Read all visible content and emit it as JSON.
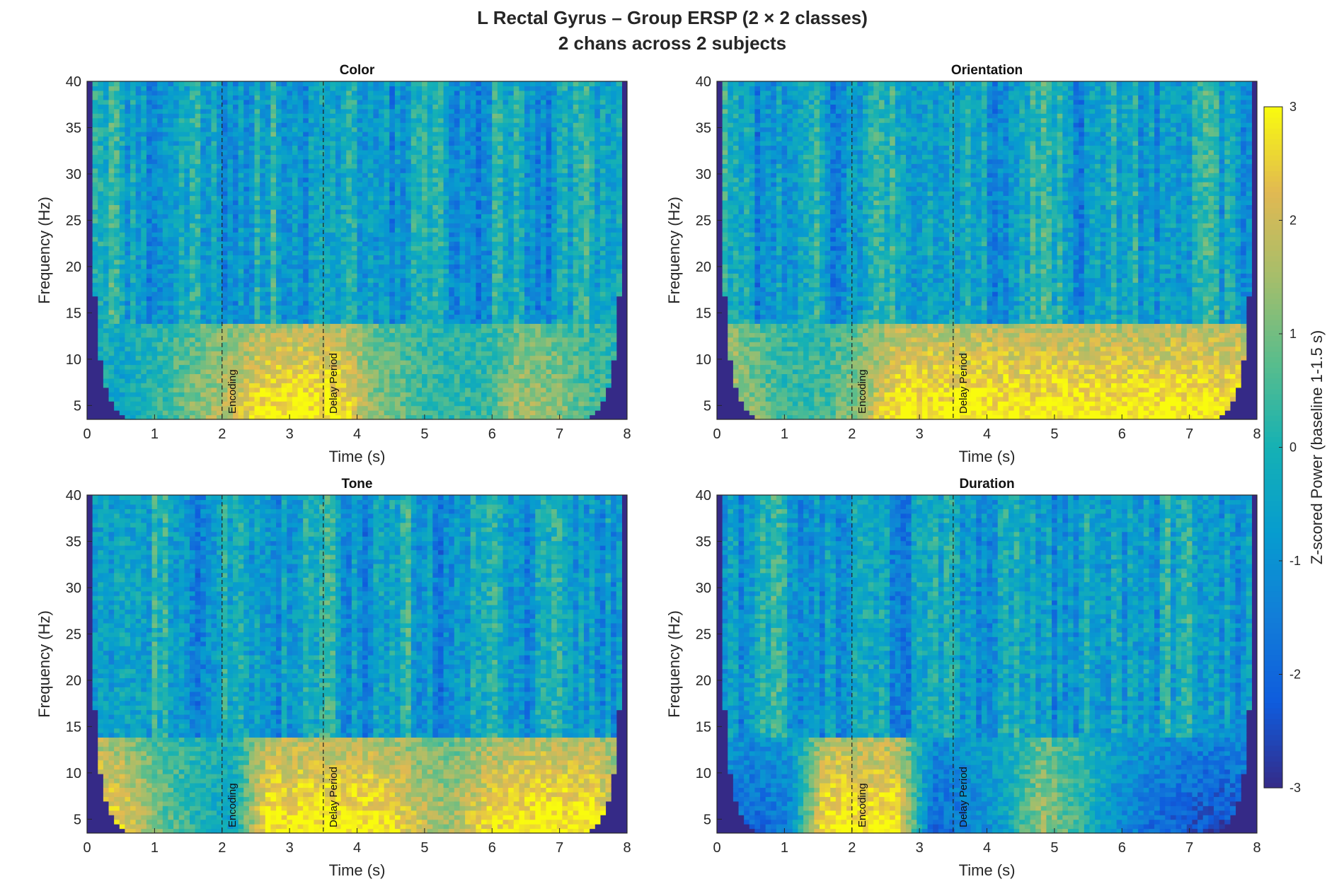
{
  "title": "L Rectal Gyrus  –  Group ERSP (2 × 2 classes)",
  "subtitle": "2 chans across 2 subjects",
  "colorbar": {
    "label": "Z-scored Power (baseline 1-1.5 s)",
    "ticks": [
      3,
      2,
      1,
      0,
      -1,
      -2,
      -3
    ],
    "range": [
      -3,
      3
    ],
    "colormap": "parula"
  },
  "chart_data": [
    {
      "type": "heatmap",
      "title": "Color",
      "xlabel": "Time (s)",
      "ylabel": "Frequency (Hz)",
      "xlim": [
        0,
        8
      ],
      "ylim": [
        3.5,
        40
      ],
      "xticks": [
        0,
        1,
        2,
        3,
        4,
        5,
        6,
        7,
        8
      ],
      "yticks": [
        5,
        10,
        15,
        20,
        25,
        30,
        35,
        40
      ],
      "markers": [
        {
          "x": 2,
          "label": "Encoding"
        },
        {
          "x": 3.5,
          "label": "Delay Period"
        }
      ],
      "clim": [
        -3,
        3
      ],
      "low_freq_z_by_time": [
        0,
        -0.5,
        0.3,
        1.2,
        2.0,
        3,
        3,
        3,
        1.3,
        0.7,
        0.2,
        0.3,
        1.5,
        1.3,
        0.6,
        0
      ]
    },
    {
      "type": "heatmap",
      "title": "Orientation",
      "xlabel": "Time (s)",
      "ylabel": "Frequency (Hz)",
      "xlim": [
        0,
        8
      ],
      "ylim": [
        3.5,
        40
      ],
      "xticks": [
        0,
        1,
        2,
        3,
        4,
        5,
        6,
        7,
        8
      ],
      "yticks": [
        5,
        10,
        15,
        20,
        25,
        30,
        35,
        40
      ],
      "markers": [
        {
          "x": 2,
          "label": "Encoding"
        },
        {
          "x": 3.5,
          "label": "Delay Period"
        }
      ],
      "clim": [
        -3,
        3
      ],
      "low_freq_z_by_time": [
        2.5,
        1.2,
        0.3,
        0.5,
        1.5,
        3,
        3,
        3,
        3,
        3,
        3,
        3,
        3,
        3,
        3,
        2.8
      ]
    },
    {
      "type": "heatmap",
      "title": "Tone",
      "xlabel": "Time (s)",
      "ylabel": "Frequency (Hz)",
      "xlim": [
        0,
        8
      ],
      "ylim": [
        3.5,
        40
      ],
      "xticks": [
        0,
        1,
        2,
        3,
        4,
        5,
        6,
        7,
        8
      ],
      "yticks": [
        5,
        10,
        15,
        20,
        25,
        30,
        35,
        40
      ],
      "markers": [
        {
          "x": 2,
          "label": "Encoding"
        },
        {
          "x": 3.5,
          "label": "Delay Period"
        }
      ],
      "clim": [
        -3,
        3
      ],
      "low_freq_z_by_time": [
        3,
        2.5,
        1.0,
        0.2,
        -0.5,
        3,
        3,
        3,
        3,
        2.2,
        1.5,
        2.5,
        3,
        3,
        3,
        2.0
      ]
    },
    {
      "type": "heatmap",
      "title": "Duration",
      "xlabel": "Time (s)",
      "ylabel": "Frequency (Hz)",
      "xlim": [
        0,
        8
      ],
      "ylim": [
        3.5,
        40
      ],
      "xticks": [
        0,
        1,
        2,
        3,
        4,
        5,
        6,
        7,
        8
      ],
      "yticks": [
        5,
        10,
        15,
        20,
        25,
        30,
        35,
        40
      ],
      "markers": [
        {
          "x": 2,
          "label": "Encoding"
        },
        {
          "x": 3.5,
          "label": "Delay Period"
        }
      ],
      "clim": [
        -3,
        3
      ],
      "low_freq_z_by_time": [
        -1.5,
        -2.0,
        -1.5,
        3,
        3,
        3,
        -2.0,
        -1.5,
        -0.5,
        1.5,
        0.5,
        -1.0,
        -1.8,
        -2.2,
        -2.5,
        -2.0
      ]
    }
  ]
}
